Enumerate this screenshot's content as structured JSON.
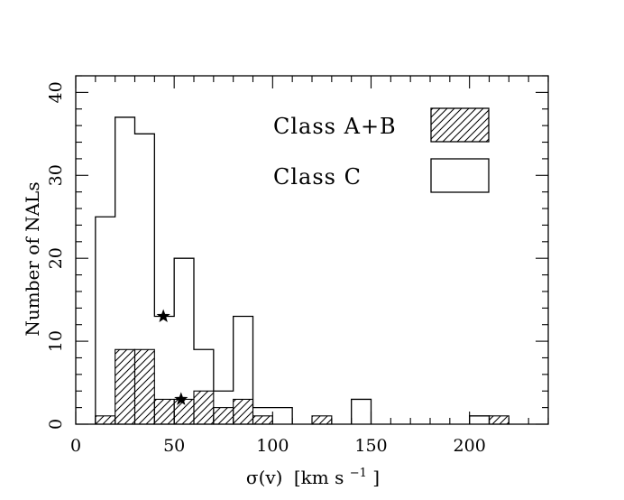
{
  "chart_data": {
    "type": "histogram",
    "xlabel_main": "σ(v)",
    "xlabel_unit": "[km s",
    "xlabel_exp": "−1",
    "xlabel_close": "]",
    "ylabel": "Number of NALs",
    "xlim": [
      0,
      240
    ],
    "ylim": [
      0,
      42
    ],
    "xticks": [
      0,
      50,
      100,
      150,
      200
    ],
    "yticks": [
      0,
      10,
      20,
      30,
      40
    ],
    "x_minor_step": 10,
    "y_minor_step": 2,
    "bin_width": 10,
    "series": [
      {
        "name": "Class A+B",
        "style": "hatched",
        "bins": [
          {
            "x0": 10,
            "count": 1
          },
          {
            "x0": 20,
            "count": 9
          },
          {
            "x0": 30,
            "count": 9
          },
          {
            "x0": 40,
            "count": 3
          },
          {
            "x0": 50,
            "count": 3
          },
          {
            "x0": 60,
            "count": 4
          },
          {
            "x0": 70,
            "count": 2
          },
          {
            "x0": 80,
            "count": 3
          },
          {
            "x0": 90,
            "count": 1
          },
          {
            "x0": 120,
            "count": 1
          },
          {
            "x0": 210,
            "count": 1
          }
        ]
      },
      {
        "name": "Class C",
        "style": "open",
        "bins": [
          {
            "x0": 10,
            "count": 25
          },
          {
            "x0": 20,
            "count": 37
          },
          {
            "x0": 30,
            "count": 35
          },
          {
            "x0": 40,
            "count": 13
          },
          {
            "x0": 50,
            "count": 20
          },
          {
            "x0": 60,
            "count": 9
          },
          {
            "x0": 70,
            "count": 4
          },
          {
            "x0": 80,
            "count": 13
          },
          {
            "x0": 90,
            "count": 2
          },
          {
            "x0": 100,
            "count": 2
          },
          {
            "x0": 140,
            "count": 3
          },
          {
            "x0": 200,
            "count": 1
          }
        ]
      }
    ],
    "markers": [
      {
        "x": 44.5,
        "y": 13,
        "symbol": "star"
      },
      {
        "x": 53.5,
        "y": 3,
        "symbol": "star"
      }
    ],
    "legend": [
      {
        "label": "Class A+B",
        "style": "hatched"
      },
      {
        "label": "Class C",
        "style": "open"
      }
    ],
    "legend_position": "top-right",
    "grid": false
  }
}
